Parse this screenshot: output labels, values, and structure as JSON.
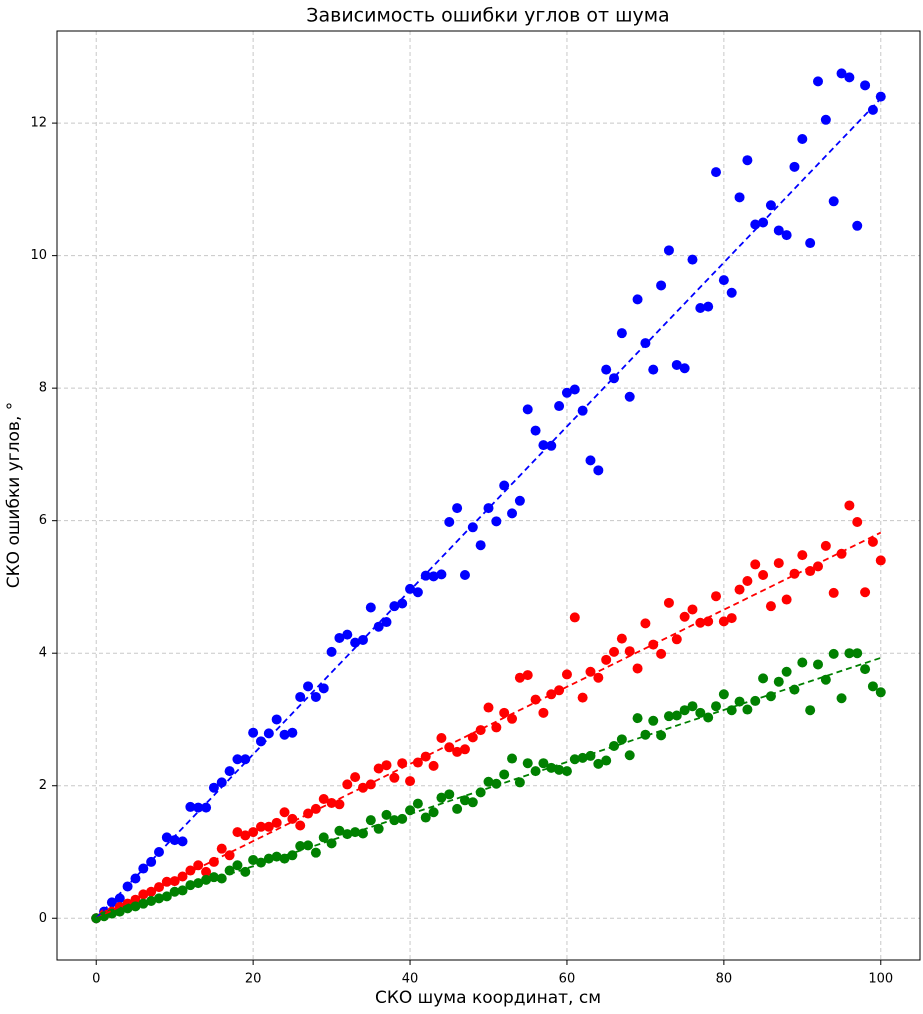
{
  "chart_data": {
    "type": "scatter",
    "title": "Зависимость ошибки углов от шума",
    "x_label": "СКО шума координат, см",
    "y_label": "СКО ошибки углов, °",
    "xlim": [
      -5,
      105
    ],
    "ylim": [
      -0.63,
      13.39
    ],
    "xticks": [
      0,
      20,
      40,
      60,
      80,
      100
    ],
    "yticks": [
      0,
      2,
      4,
      6,
      8,
      10,
      12
    ],
    "grid": true,
    "x": [
      0,
      1,
      2,
      3,
      4,
      5,
      6,
      7,
      8,
      9,
      10,
      11,
      12,
      13,
      14,
      15,
      16,
      17,
      18,
      19,
      20,
      21,
      22,
      23,
      24,
      25,
      26,
      27,
      28,
      29,
      30,
      31,
      32,
      33,
      34,
      35,
      36,
      37,
      38,
      39,
      40,
      41,
      42,
      43,
      44,
      45,
      46,
      47,
      48,
      49,
      50,
      51,
      52,
      53,
      54,
      55,
      56,
      57,
      58,
      59,
      60,
      61,
      62,
      63,
      64,
      65,
      66,
      67,
      68,
      69,
      70,
      71,
      72,
      73,
      74,
      75,
      76,
      77,
      78,
      79,
      80,
      81,
      82,
      83,
      84,
      85,
      86,
      87,
      88,
      89,
      90,
      91,
      92,
      93,
      94,
      95,
      96,
      97,
      98,
      99,
      100
    ],
    "series": [
      {
        "color": "#0000ff",
        "values": [
          0,
          0.1,
          0.24,
          0.3,
          0.48,
          0.6,
          0.75,
          0.85,
          1.0,
          1.22,
          1.18,
          1.16,
          1.68,
          1.67,
          1.67,
          1.97,
          2.05,
          2.22,
          2.4,
          2.4,
          2.8,
          2.67,
          2.79,
          3.0,
          2.77,
          2.8,
          3.34,
          3.5,
          3.34,
          3.47,
          4.02,
          4.23,
          4.28,
          4.16,
          4.2,
          4.69,
          4.4,
          4.47,
          4.71,
          4.75,
          4.97,
          4.92,
          5.17,
          5.16,
          5.19,
          5.98,
          6.19,
          5.18,
          5.9,
          5.63,
          6.19,
          5.99,
          6.53,
          6.11,
          6.3,
          7.68,
          7.36,
          7.14,
          7.13,
          7.73,
          7.93,
          7.98,
          7.66,
          6.91,
          6.76,
          8.28,
          8.15,
          8.83,
          7.87,
          9.34,
          8.68,
          8.28,
          9.55,
          10.08,
          8.35,
          8.3,
          9.94,
          9.21,
          9.23,
          11.26,
          9.63,
          9.44,
          10.88,
          11.44,
          10.47,
          10.5,
          10.76,
          10.38,
          10.31,
          11.34,
          11.76,
          10.19,
          12.63,
          12.05,
          10.82,
          12.75,
          12.69,
          10.45,
          12.57,
          12.2,
          12.4
        ]
      },
      {
        "color": "#ff0000",
        "values": [
          0,
          0.06,
          0.1,
          0.17,
          0.22,
          0.28,
          0.36,
          0.4,
          0.47,
          0.55,
          0.56,
          0.63,
          0.72,
          0.8,
          0.7,
          0.85,
          1.05,
          0.95,
          1.3,
          1.25,
          1.3,
          1.38,
          1.38,
          1.44,
          1.6,
          1.5,
          1.4,
          1.58,
          1.65,
          1.8,
          1.74,
          1.72,
          2.02,
          2.13,
          1.97,
          2.02,
          2.26,
          2.31,
          2.12,
          2.34,
          2.07,
          2.35,
          2.44,
          2.3,
          2.72,
          2.58,
          2.51,
          2.55,
          2.73,
          2.84,
          3.18,
          2.88,
          3.1,
          3.01,
          3.63,
          3.67,
          3.3,
          3.1,
          3.38,
          3.44,
          3.68,
          4.54,
          3.33,
          3.72,
          3.63,
          3.9,
          4.02,
          4.22,
          4.03,
          3.77,
          4.45,
          4.13,
          3.99,
          4.76,
          4.21,
          4.55,
          4.66,
          4.46,
          4.48,
          4.86,
          4.48,
          4.53,
          4.96,
          5.09,
          5.34,
          5.18,
          4.71,
          5.36,
          4.81,
          5.2,
          5.48,
          5.24,
          5.31,
          5.62,
          4.91,
          5.5,
          6.23,
          5.98,
          4.92,
          5.68,
          5.4
        ]
      },
      {
        "color": "#008000",
        "values": [
          0,
          0.03,
          0.07,
          0.1,
          0.15,
          0.18,
          0.22,
          0.26,
          0.3,
          0.33,
          0.4,
          0.42,
          0.5,
          0.53,
          0.58,
          0.62,
          0.6,
          0.72,
          0.8,
          0.7,
          0.88,
          0.84,
          0.9,
          0.93,
          0.9,
          0.95,
          1.09,
          1.1,
          0.99,
          1.22,
          1.13,
          1.32,
          1.27,
          1.3,
          1.28,
          1.48,
          1.35,
          1.56,
          1.48,
          1.5,
          1.63,
          1.73,
          1.52,
          1.6,
          1.82,
          1.87,
          1.65,
          1.78,
          1.75,
          1.9,
          2.06,
          2.03,
          2.17,
          2.41,
          2.05,
          2.34,
          2.22,
          2.34,
          2.27,
          2.24,
          2.22,
          2.4,
          2.42,
          2.45,
          2.33,
          2.38,
          2.6,
          2.7,
          2.46,
          3.02,
          2.77,
          2.98,
          2.76,
          3.05,
          3.06,
          3.14,
          3.2,
          3.1,
          3.03,
          3.2,
          3.38,
          3.14,
          3.27,
          3.15,
          3.28,
          3.62,
          3.35,
          3.57,
          3.72,
          3.45,
          3.86,
          3.14,
          3.83,
          3.6,
          3.99,
          3.32,
          4.0,
          4.0,
          3.76,
          3.5,
          3.41
        ]
      }
    ],
    "fits": [
      {
        "color": "#0000ff",
        "linestyle": "dashed",
        "x": [
          0,
          100
        ],
        "values": [
          0,
          12.37
        ]
      },
      {
        "color": "#ff0000",
        "linestyle": "dashed",
        "x": [
          0,
          100
        ],
        "values": [
          0,
          5.82
        ]
      },
      {
        "color": "#008000",
        "linestyle": "dashed",
        "x": [
          0,
          100
        ],
        "values": [
          0,
          3.93
        ]
      }
    ]
  }
}
